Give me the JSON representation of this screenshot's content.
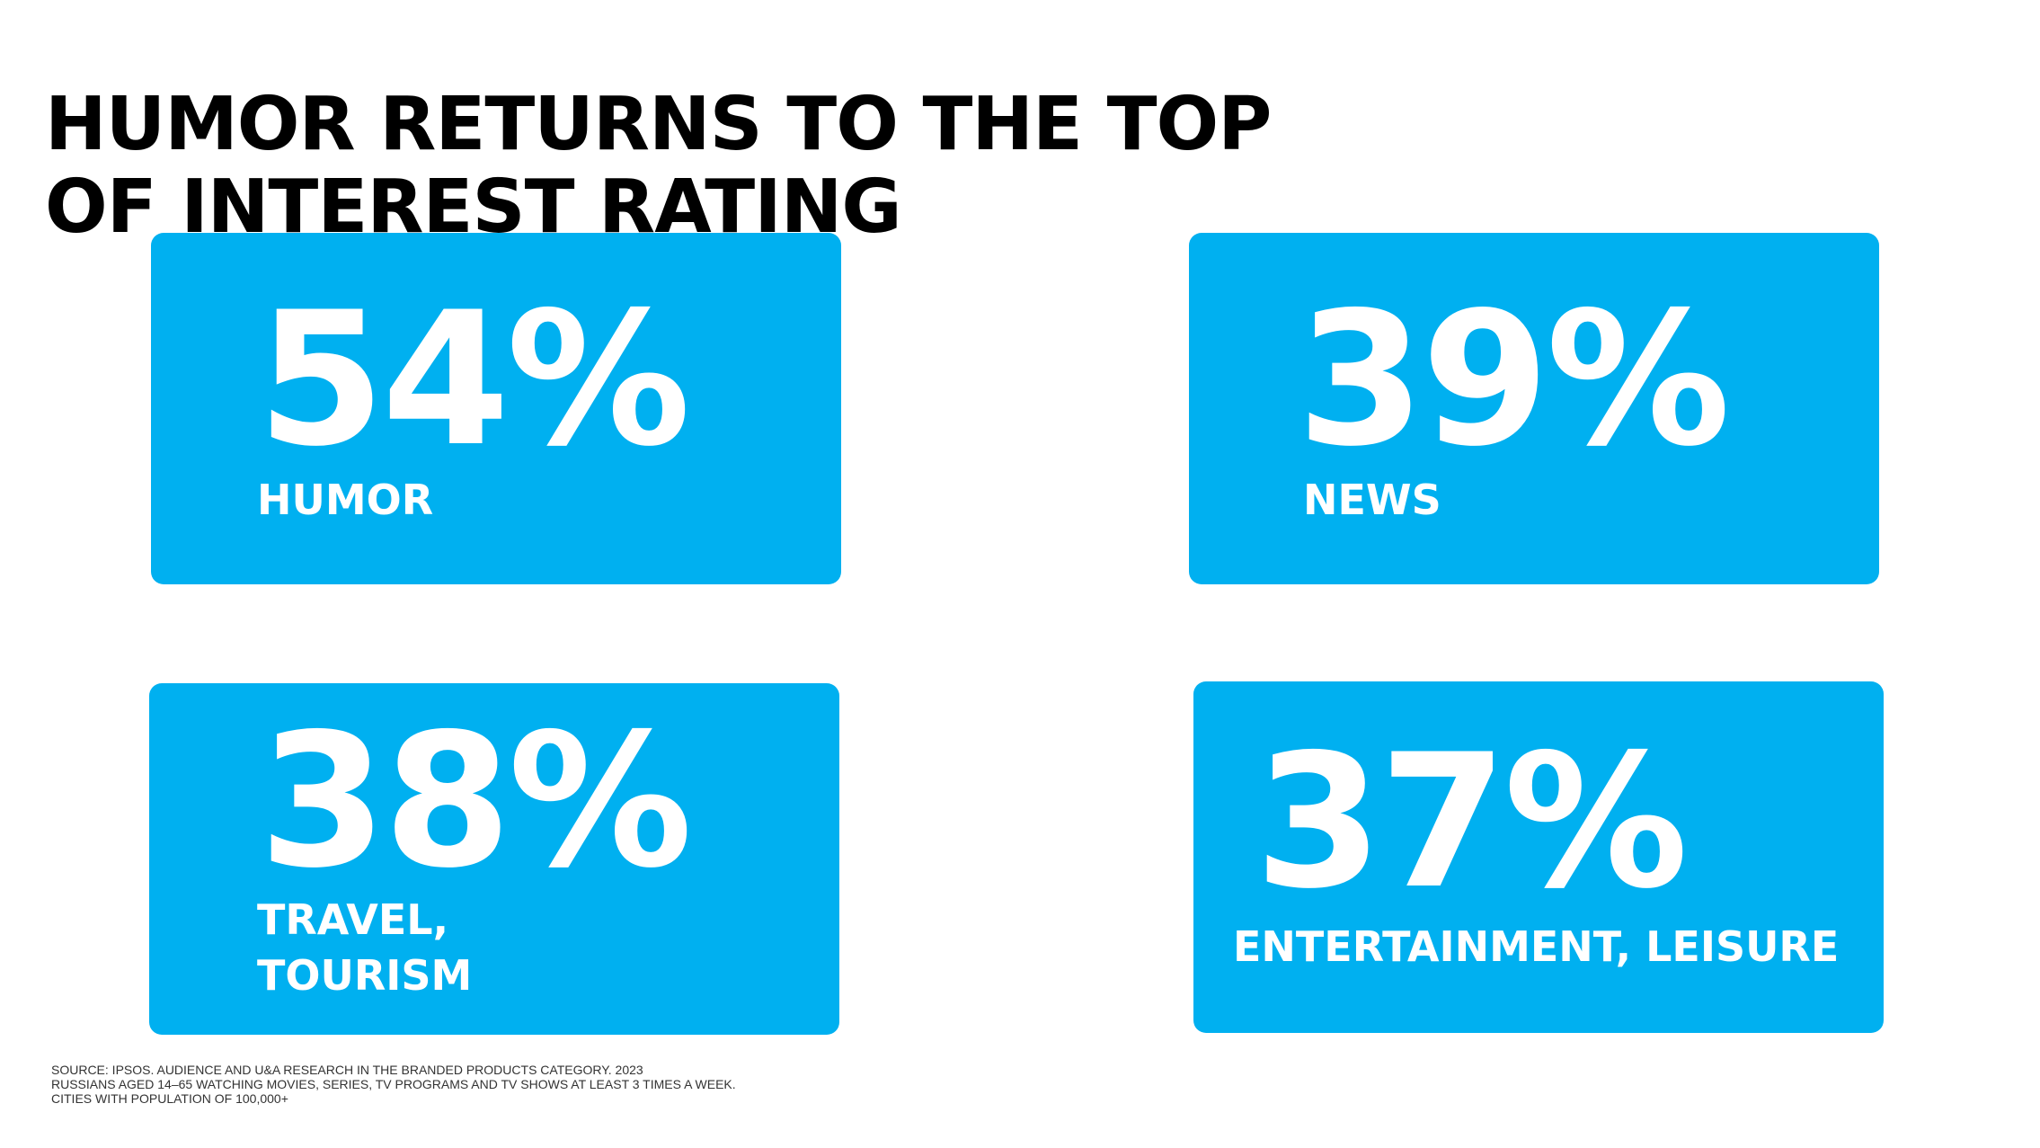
{
  "title": {
    "line1": "HUMOR RETURNS TO THE TOP",
    "line2": "OF INTEREST RATING"
  },
  "colors": {
    "card_background": "#00b0f0",
    "card_text": "#ffffff",
    "title_text": "#000000"
  },
  "stats": [
    {
      "value": "54%",
      "label": "HUMOR"
    },
    {
      "value": "39%",
      "label": "NEWS"
    },
    {
      "value": "38%",
      "label_lines": [
        "TRAVEL,",
        "TOURISM"
      ]
    },
    {
      "value": "37%",
      "label": "ENTERTAINMENT, LEISURE"
    }
  ],
  "source": {
    "line1": "SOURCE: IPSOS.  AUDIENCE AND U&A RESEARCH IN THE BRANDED PRODUCTS CATEGORY. 2023",
    "line2": "RUSSIANS AGED 14–65 WATCHING MOVIES, SERIES, TV PROGRAMS AND TV SHOWS AT LEAST 3 TIMES A WEEK.",
    "line3": "CITIES WITH POPULATION OF 100,000+"
  }
}
